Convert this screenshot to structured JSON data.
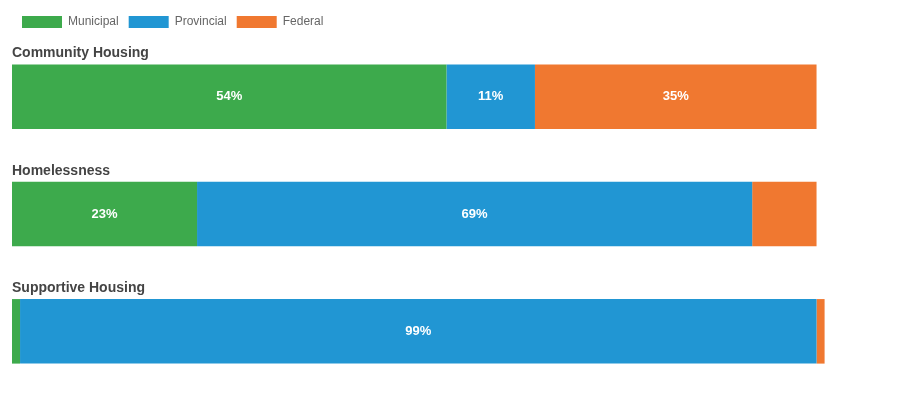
{
  "chart_data": {
    "type": "bar",
    "orientation": "horizontal",
    "stacked": true,
    "categories": [
      "Community Housing",
      "Homelessness",
      "Supportive Housing"
    ],
    "series": [
      {
        "name": "Municipal",
        "color": "#3daa4c",
        "values": [
          54,
          23,
          1
        ],
        "value_labels": [
          "54%",
          "23%",
          null
        ]
      },
      {
        "name": "Provincial",
        "color": "#2196d3",
        "values": [
          11,
          69,
          99
        ],
        "value_labels": [
          "11%",
          "69%",
          "99%"
        ]
      },
      {
        "name": "Federal",
        "color": "#f07830",
        "values": [
          35,
          8,
          1
        ],
        "value_labels": [
          "35%",
          null,
          null
        ]
      }
    ],
    "xlim": [
      0,
      110
    ],
    "xticks": [
      0,
      10,
      20,
      30,
      40,
      50,
      60,
      70,
      80,
      90,
      100,
      110
    ],
    "data_labels": true,
    "tick_labels": false,
    "grid": false,
    "legend": "top"
  }
}
